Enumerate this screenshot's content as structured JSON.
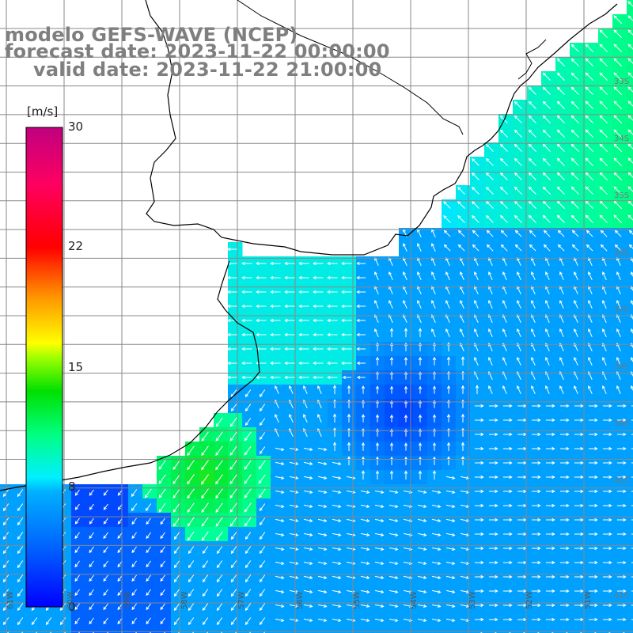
{
  "title": {
    "line1": "modelo GEFS-WAVE (NCEP)",
    "line2": "forecast date: 2023-11-22 00:00:00",
    "line3": "valid date: 2023-11-22 21:00:00"
  },
  "colorbar": {
    "unit": "[m/s]",
    "ticks": [
      "30",
      "22",
      "15",
      "8",
      "0"
    ],
    "colors": [
      "#0000ff",
      "#0070ff",
      "#00d8ff",
      "#00ff80",
      "#00e000",
      "#80ff00",
      "#ffff00",
      "#ff8000",
      "#ff0000",
      "#ff0060",
      "#c0007f"
    ]
  },
  "lat_labels": [
    "33S",
    "34S",
    "35S",
    "36S",
    "37S",
    "38S",
    "39S",
    "40S",
    "41S"
  ],
  "lon_labels": [
    "61W",
    "60W",
    "59W",
    "58W",
    "57W",
    "56W",
    "55W",
    "54W",
    "53W",
    "52W",
    "51W"
  ],
  "colors": {
    "grid": "#888888",
    "coast": "#000000",
    "arrow": "#ffffff"
  }
}
